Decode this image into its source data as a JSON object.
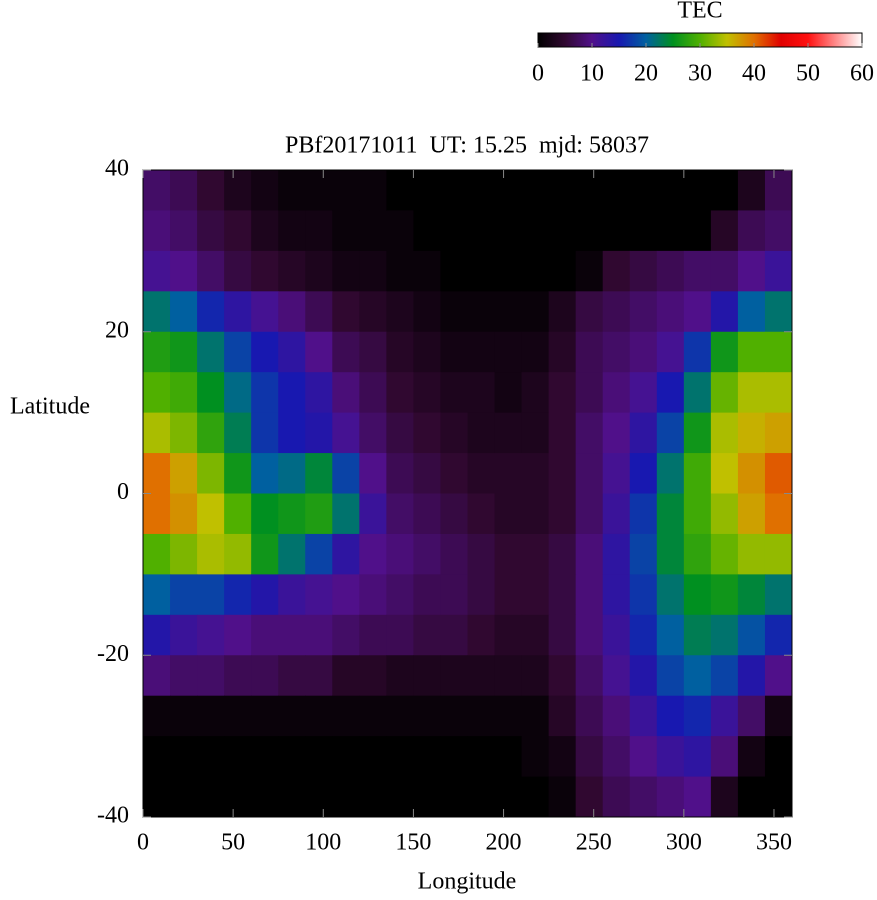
{
  "chart_data": {
    "type": "heatmap",
    "title": "PBf20171011  UT: 15.25  mjd: 58037",
    "xlabel": "Longitude",
    "ylabel": "Latitude",
    "xlim": [
      0,
      360
    ],
    "ylim": [
      -40,
      40
    ],
    "xticks": [
      0,
      50,
      100,
      150,
      200,
      250,
      300,
      350
    ],
    "yticks": [
      40,
      20,
      0,
      -20,
      -40
    ],
    "x": [
      7.5,
      22.5,
      37.5,
      52.5,
      67.5,
      82.5,
      97.5,
      112.5,
      127.5,
      142.5,
      157.5,
      172.5,
      187.5,
      202.5,
      217.5,
      232.5,
      247.5,
      262.5,
      277.5,
      292.5,
      307.5,
      322.5,
      337.5,
      352.5
    ],
    "y": [
      37.5,
      32.5,
      27.5,
      22.5,
      17.5,
      12.5,
      7.5,
      2.5,
      -2.5,
      -7.5,
      -12.5,
      -17.5,
      -22.5,
      -27.5,
      -32.5,
      -37.5
    ],
    "z": [
      [
        8,
        7,
        5,
        3,
        2,
        1,
        1,
        1,
        1,
        0,
        0,
        0,
        0,
        0,
        0,
        0,
        0,
        0,
        0,
        0,
        0,
        0,
        3,
        7
      ],
      [
        9,
        8,
        6,
        5,
        3,
        2,
        2,
        1,
        1,
        1,
        0,
        0,
        0,
        0,
        0,
        0,
        0,
        0,
        0,
        0,
        0,
        4,
        7,
        8
      ],
      [
        11,
        10,
        8,
        6,
        5,
        4,
        3,
        2,
        2,
        1,
        1,
        0,
        0,
        0,
        0,
        0,
        1,
        5,
        6,
        7,
        8,
        8,
        10,
        12
      ],
      [
        22,
        20,
        16,
        13,
        11,
        9,
        7,
        5,
        4,
        3,
        2,
        1,
        1,
        1,
        1,
        3,
        6,
        7,
        8,
        9,
        10,
        14,
        20,
        22
      ],
      [
        27,
        26,
        22,
        18,
        15,
        13,
        10,
        7,
        6,
        4,
        3,
        2,
        2,
        2,
        2,
        4,
        7,
        8,
        9,
        11,
        17,
        26,
        30,
        30
      ],
      [
        30,
        29,
        25,
        21,
        17,
        15,
        13,
        9,
        7,
        5,
        4,
        3,
        3,
        2,
        3,
        5,
        7,
        9,
        11,
        15,
        22,
        31,
        34,
        34
      ],
      [
        34,
        32,
        28,
        23,
        17,
        15,
        14,
        11,
        8,
        6,
        5,
        4,
        3,
        3,
        3,
        5,
        8,
        10,
        13,
        18,
        26,
        34,
        36,
        37
      ],
      [
        40,
        37,
        32,
        26,
        20,
        21,
        24,
        18,
        10,
        7,
        6,
        5,
        4,
        4,
        4,
        5,
        8,
        11,
        15,
        22,
        29,
        35,
        38,
        41
      ],
      [
        40,
        38,
        35,
        30,
        25,
        26,
        27,
        22,
        12,
        8,
        7,
        6,
        5,
        4,
        4,
        5,
        8,
        12,
        17,
        24,
        29,
        33,
        37,
        40
      ],
      [
        30,
        32,
        34,
        33,
        26,
        22,
        18,
        13,
        10,
        9,
        8,
        7,
        6,
        5,
        5,
        6,
        9,
        13,
        18,
        24,
        28,
        31,
        33,
        33
      ],
      [
        20,
        18,
        18,
        16,
        14,
        12,
        11,
        10,
        9,
        8,
        7,
        7,
        6,
        5,
        5,
        6,
        9,
        13,
        17,
        22,
        25,
        26,
        24,
        22
      ],
      [
        14,
        12,
        11,
        10,
        9,
        9,
        9,
        8,
        7,
        7,
        6,
        6,
        5,
        4,
        4,
        6,
        9,
        12,
        16,
        20,
        23,
        22,
        19,
        16
      ],
      [
        9,
        8,
        8,
        7,
        7,
        6,
        6,
        4,
        4,
        3,
        3,
        3,
        3,
        3,
        3,
        5,
        8,
        11,
        14,
        18,
        20,
        18,
        14,
        10
      ],
      [
        1,
        1,
        1,
        1,
        1,
        1,
        1,
        1,
        1,
        1,
        1,
        1,
        1,
        1,
        1,
        4,
        7,
        9,
        12,
        15,
        16,
        12,
        8,
        2
      ],
      [
        0,
        0,
        0,
        0,
        0,
        0,
        0,
        0,
        0,
        0,
        0,
        0,
        0,
        0,
        1,
        2,
        6,
        8,
        10,
        12,
        13,
        9,
        2,
        0
      ],
      [
        0,
        0,
        0,
        0,
        0,
        0,
        0,
        0,
        0,
        0,
        0,
        0,
        0,
        0,
        0,
        1,
        5,
        7,
        8,
        9,
        10,
        3,
        0,
        0
      ]
    ],
    "colorbar": {
      "title": "TEC",
      "lim": [
        0,
        60
      ],
      "ticks": [
        0,
        10,
        20,
        30,
        40,
        50,
        60
      ],
      "colors": [
        "#000000",
        "#300830",
        "#50108a",
        "#1818b0",
        "#0060a0",
        "#009020",
        "#50b000",
        "#c0c000",
        "#e07000",
        "#e00000",
        "#ff1010",
        "#ff8888",
        "#ffffff"
      ]
    }
  }
}
